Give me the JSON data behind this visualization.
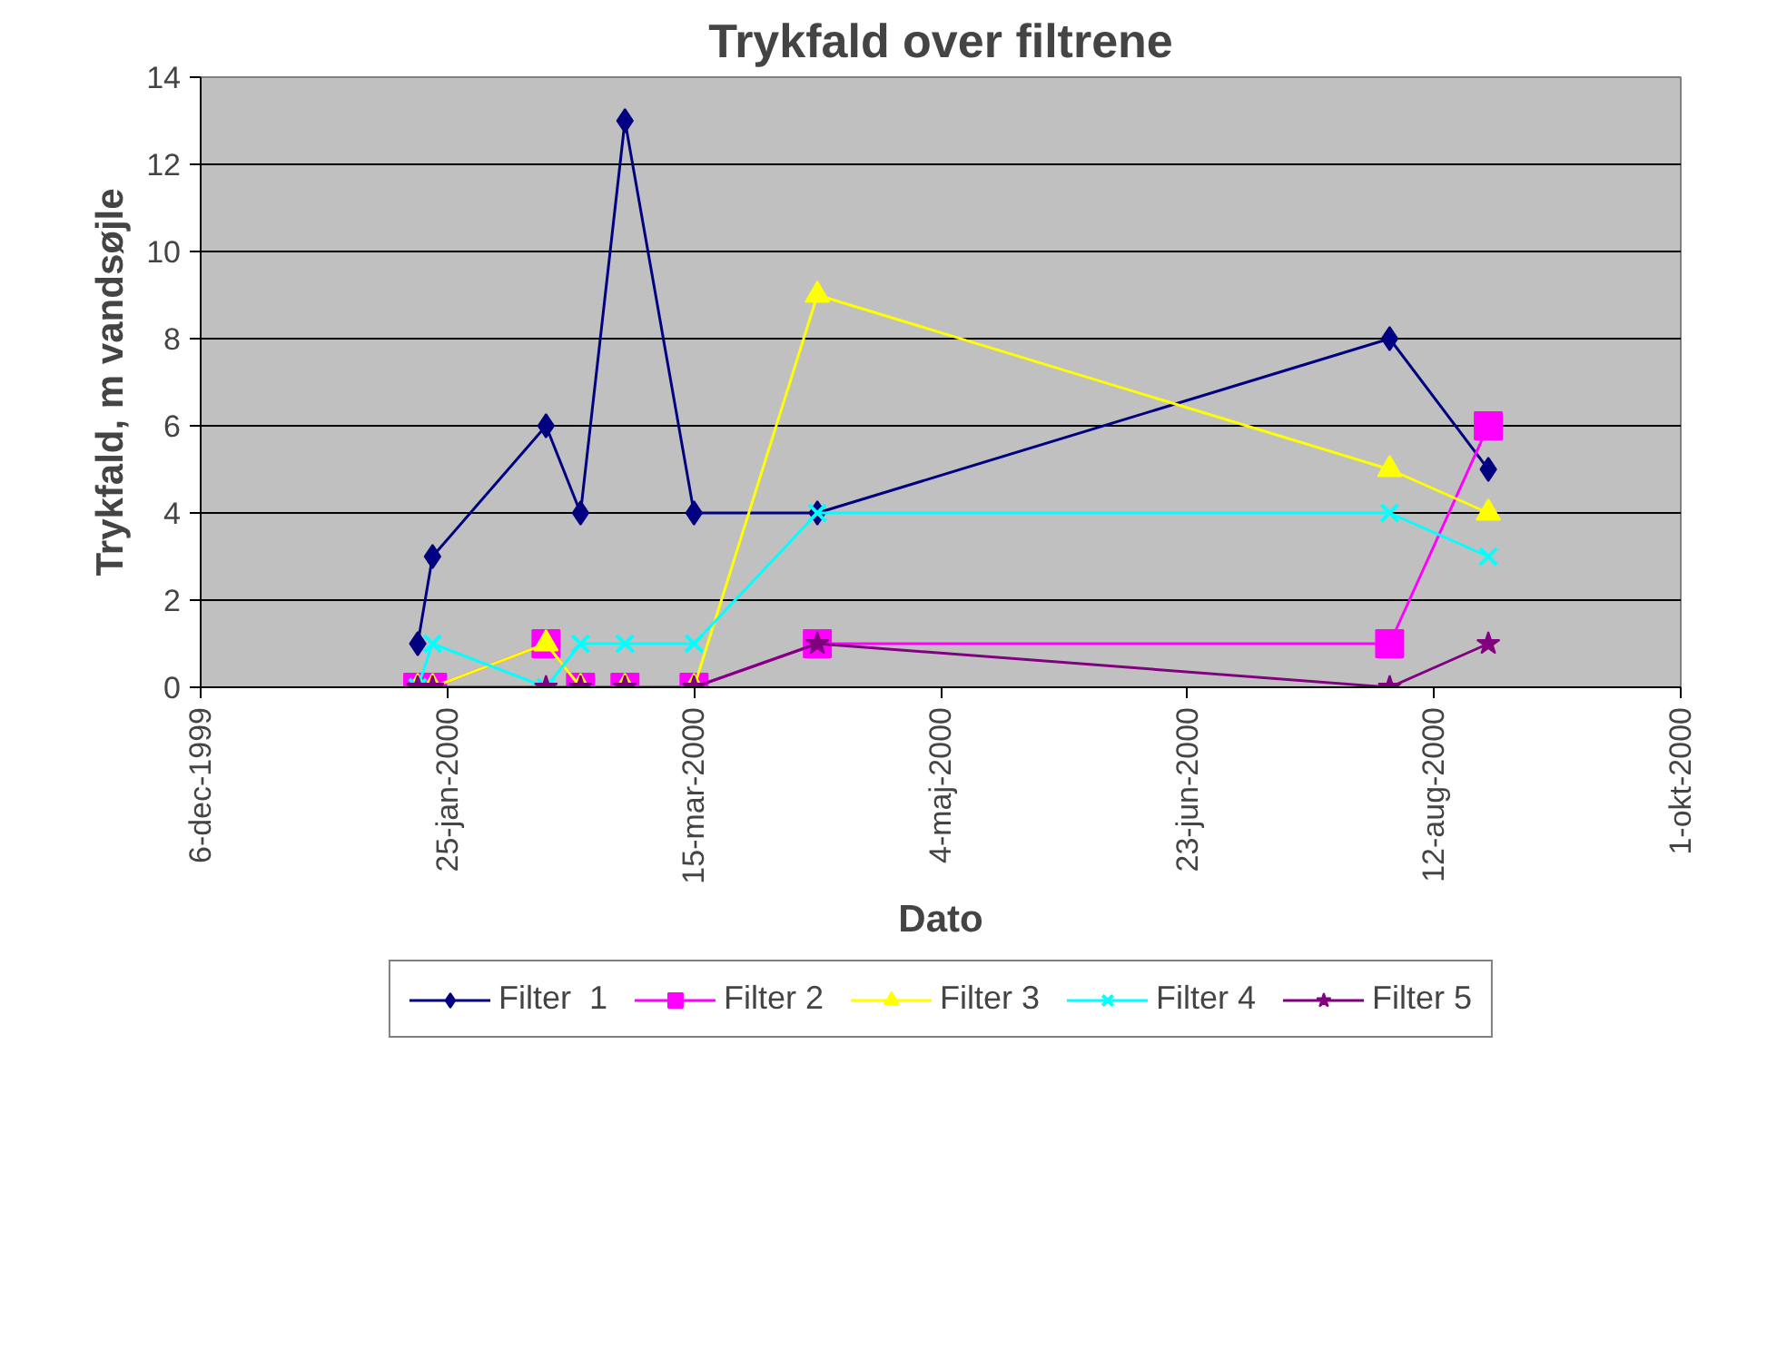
{
  "chart_data": {
    "type": "line",
    "title": "Trykfald over filtrene",
    "xlabel": "Dato",
    "ylabel": "Trykfald, m vandsøjle",
    "x": [
      "2000-01-19",
      "2000-01-22",
      "2000-02-14",
      "2000-02-21",
      "2000-03-01",
      "2000-03-15",
      "2000-04-09",
      "2000-08-03",
      "2000-08-23"
    ],
    "series": [
      {
        "name": "Filter  1",
        "color": "#000080",
        "marker": "diamond",
        "values": [
          1,
          3,
          6,
          4,
          13,
          4,
          4,
          8,
          5
        ]
      },
      {
        "name": "Filter 2",
        "color": "#ff00ff",
        "marker": "square",
        "values": [
          0,
          0,
          1,
          0,
          0,
          0,
          1,
          1,
          6
        ]
      },
      {
        "name": "Filter 3",
        "color": "#ffff00",
        "marker": "triangle",
        "values": [
          0,
          0,
          1,
          0,
          0,
          0,
          9,
          5,
          4
        ]
      },
      {
        "name": "Filter 4",
        "color": "#00ffff",
        "marker": "cross",
        "values": [
          0,
          1,
          0,
          1,
          1,
          1,
          4,
          4,
          3
        ]
      },
      {
        "name": "Filter 5",
        "color": "#800080",
        "marker": "star",
        "values": [
          0,
          0,
          0,
          0,
          0,
          0,
          1,
          0,
          1
        ]
      }
    ],
    "xlim": [
      "1999-12-06",
      "2000-10-01"
    ],
    "xticks": [
      {
        "value": "1999-12-06",
        "label": "6-dec-1999"
      },
      {
        "value": "2000-01-25",
        "label": "25-jan-2000"
      },
      {
        "value": "2000-03-15",
        "label": "15-mar-2000"
      },
      {
        "value": "2000-05-04",
        "label": "4-maj-2000"
      },
      {
        "value": "2000-06-23",
        "label": "23-jun-2000"
      },
      {
        "value": "2000-08-12",
        "label": "12-aug-2000"
      },
      {
        "value": "2000-10-01",
        "label": "1-okt-2000"
      }
    ],
    "ylim": [
      0,
      14
    ],
    "yticks": [
      0,
      2,
      4,
      6,
      8,
      10,
      12,
      14
    ],
    "grid": "y",
    "legend": "bottom",
    "line_style": "solid"
  }
}
